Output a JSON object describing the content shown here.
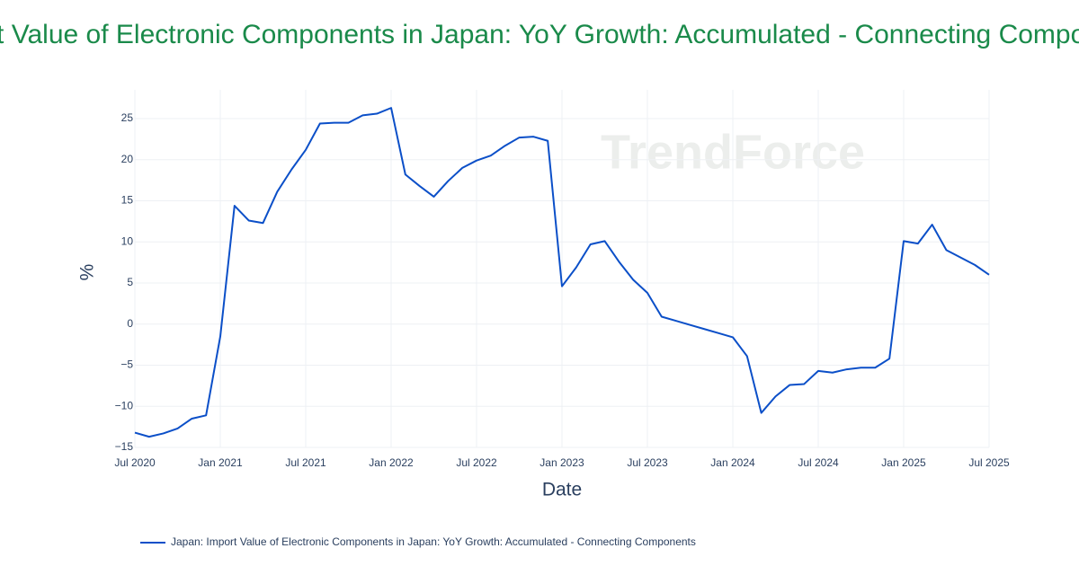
{
  "chart_data": {
    "type": "line",
    "title": "Import Value of Electronic Components in Japan: YoY Growth: Accumulated - Connecting Components",
    "watermark": "TrendForce",
    "x_label": "Date",
    "y_label": "%",
    "x": [
      "2020-07",
      "2020-08",
      "2020-09",
      "2020-10",
      "2020-11",
      "2020-12",
      "2021-01",
      "2021-02",
      "2021-03",
      "2021-04",
      "2021-05",
      "2021-06",
      "2021-07",
      "2021-08",
      "2021-09",
      "2021-10",
      "2021-11",
      "2021-12",
      "2022-01",
      "2022-02",
      "2022-03",
      "2022-04",
      "2022-05",
      "2022-06",
      "2022-07",
      "2022-08",
      "2022-09",
      "2022-10",
      "2022-11",
      "2022-12",
      "2023-01",
      "2023-02",
      "2023-03",
      "2023-04",
      "2023-05",
      "2023-06",
      "2023-07",
      "2023-08",
      "2023-09",
      "2023-10",
      "2023-11",
      "2023-12",
      "2024-01",
      "2024-02",
      "2024-03",
      "2024-04",
      "2024-05",
      "2024-06",
      "2024-07",
      "2024-08",
      "2024-09",
      "2024-10",
      "2024-11",
      "2024-12",
      "2025-01",
      "2025-02",
      "2025-03",
      "2025-04",
      "2025-05",
      "2025-06",
      "2025-07"
    ],
    "series": [
      {
        "name": "Japan: Import Value of Electronic Components in Japan: YoY Growth: Accumulated - Connecting Components",
        "color": "#0b4fc8",
        "values": [
          -13.2,
          -13.7,
          -13.3,
          -12.7,
          -11.5,
          -11.1,
          -1.5,
          14.4,
          12.6,
          12.3,
          16.1,
          18.8,
          21.2,
          24.4,
          24.5,
          24.5,
          25.4,
          25.6,
          26.3,
          18.2,
          16.8,
          15.5,
          17.4,
          19.0,
          19.9,
          20.5,
          21.7,
          22.7,
          22.8,
          22.3,
          4.6,
          6.9,
          9.7,
          10.1,
          7.6,
          5.4,
          3.8,
          0.9,
          0.4,
          -0.1,
          -0.6,
          -1.1,
          -1.6,
          -3.9,
          -10.8,
          -8.8,
          -7.4,
          -7.3,
          -5.7,
          -5.9,
          -5.5,
          -5.3,
          -5.3,
          -4.2,
          10.1,
          9.8,
          12.1,
          9.0,
          8.1,
          7.2,
          6.0
        ]
      }
    ],
    "xlim": [
      "2020-07",
      "2025-07"
    ],
    "xticks": [
      {
        "value": "2020-07",
        "label": "Jul 2020"
      },
      {
        "value": "2021-01",
        "label": "Jan 2021"
      },
      {
        "value": "2021-07",
        "label": "Jul 2021"
      },
      {
        "value": "2022-01",
        "label": "Jan 2022"
      },
      {
        "value": "2022-07",
        "label": "Jul 2022"
      },
      {
        "value": "2023-01",
        "label": "Jan 2023"
      },
      {
        "value": "2023-07",
        "label": "Jul 2023"
      },
      {
        "value": "2024-01",
        "label": "Jan 2024"
      },
      {
        "value": "2024-07",
        "label": "Jul 2024"
      },
      {
        "value": "2025-01",
        "label": "Jan 2025"
      },
      {
        "value": "2025-07",
        "label": "Jul 2025"
      }
    ],
    "ylim": [
      -15,
      28.5
    ],
    "yticks": [
      {
        "value": -15,
        "label": "−15"
      },
      {
        "value": -10,
        "label": "−10"
      },
      {
        "value": -5,
        "label": "−5"
      },
      0,
      5,
      10,
      15,
      20,
      25
    ],
    "grid": true
  }
}
